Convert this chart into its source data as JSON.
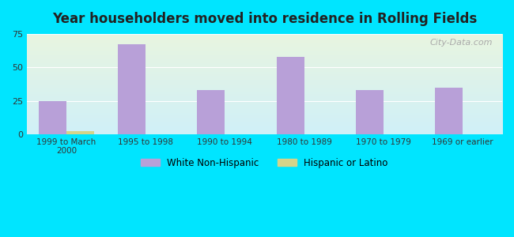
{
  "title": "Year householders moved into residence in Rolling Fields",
  "categories": [
    "1999 to March\n2000",
    "1995 to 1998",
    "1990 to 1994",
    "1980 to 1989",
    "1970 to 1979",
    "1969 or earlier"
  ],
  "white_values": [
    25,
    67,
    33,
    58,
    33,
    35
  ],
  "hispanic_values": [
    2,
    0,
    0,
    0,
    0,
    0
  ],
  "white_color": "#b8a0d8",
  "hispanic_color": "#d4d48a",
  "background_outer": "#00e5ff",
  "background_inner_top": "#e8f5e0",
  "background_inner_bottom": "#d0f0f8",
  "ylim": [
    0,
    75
  ],
  "yticks": [
    0,
    25,
    50,
    75
  ],
  "bar_width": 0.35,
  "legend_white": "White Non-Hispanic",
  "legend_hispanic": "Hispanic or Latino",
  "watermark": "City-Data.com"
}
